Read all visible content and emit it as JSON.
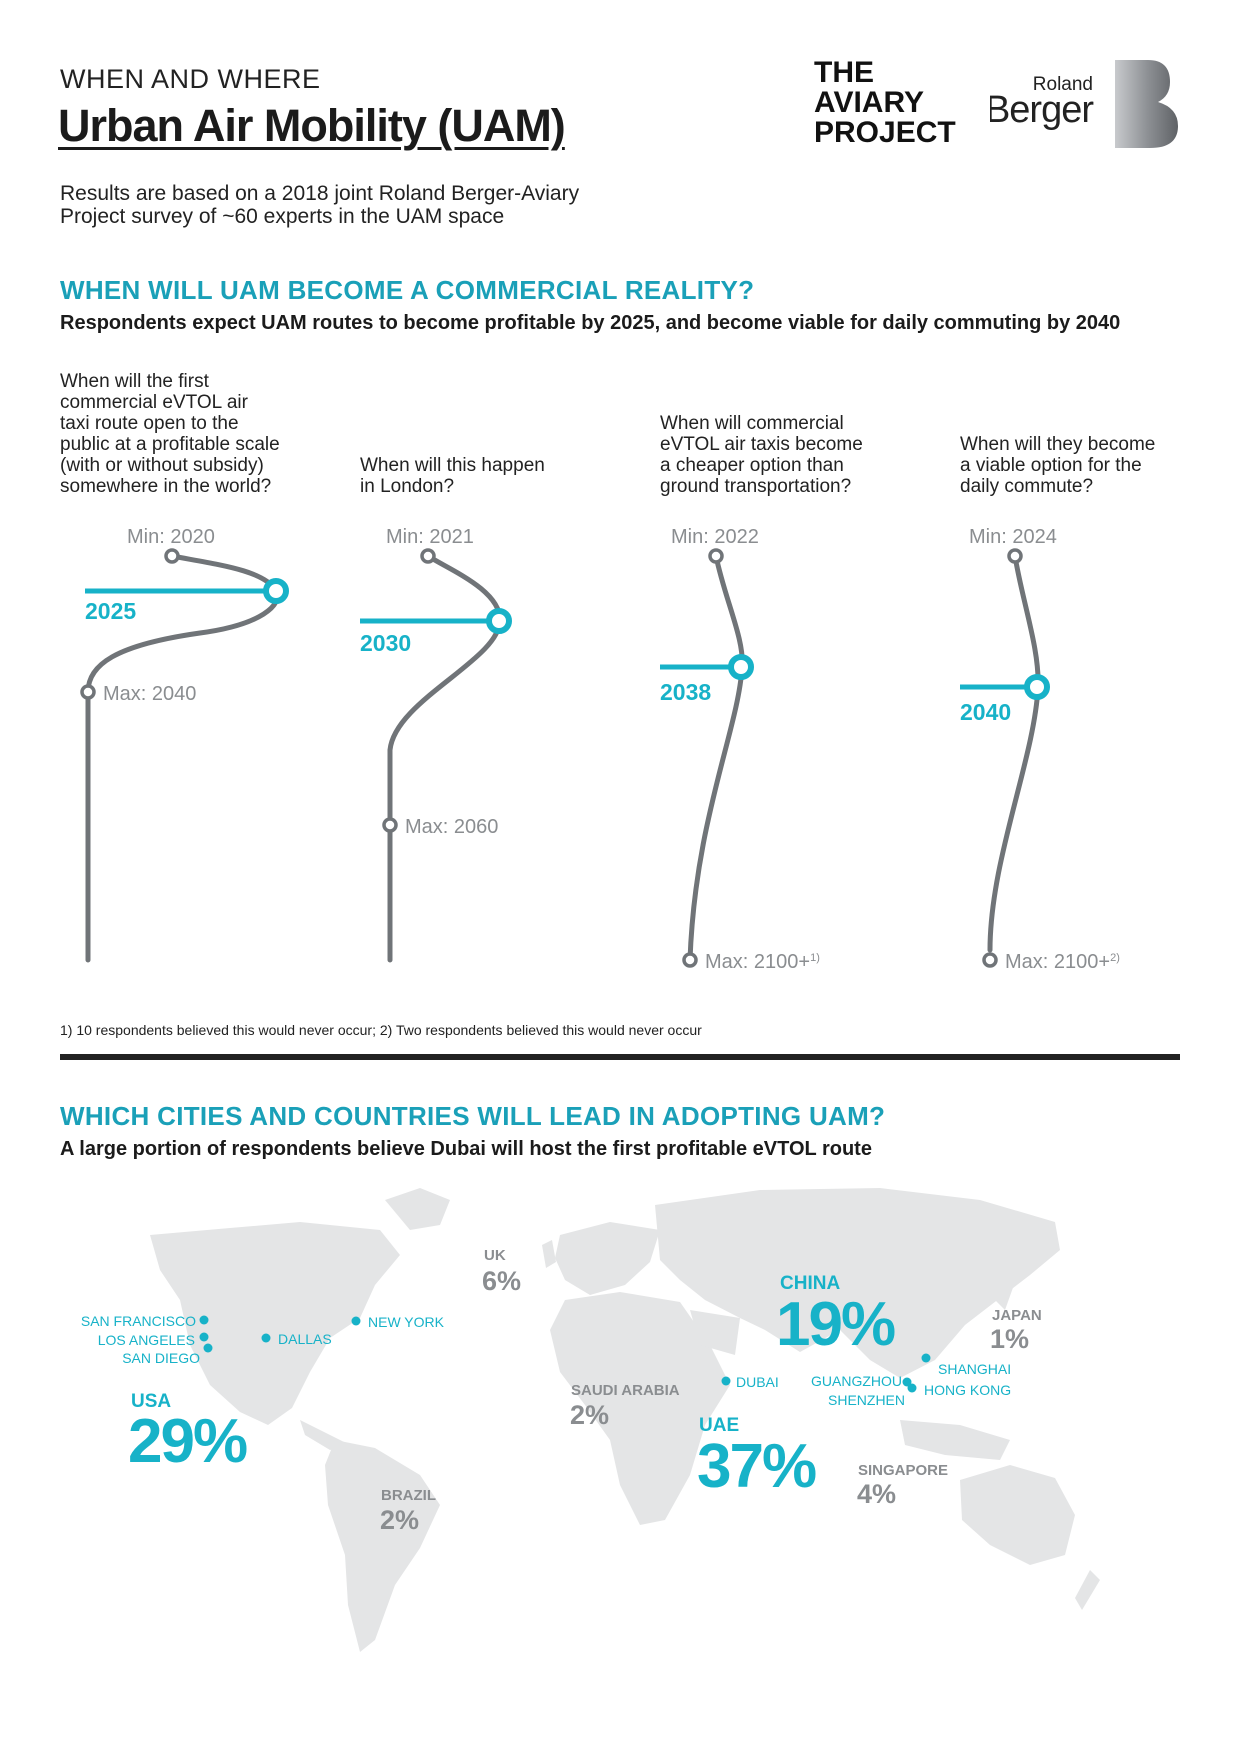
{
  "header": {
    "kicker": "WHEN AND WHERE",
    "title": "Urban Air Mobility (UAM)",
    "intro": "Results are based on a 2018 joint Roland Berger-Aviary Project survey of ~60 experts in the UAM space",
    "logo_aviary": [
      "THE",
      "AVIARY",
      "PROJECT"
    ],
    "logo_rb_line1": "Roland",
    "logo_rb_line2": "Berger"
  },
  "section1": {
    "title": "WHEN WILL UAM BECOME A COMMERCIAL REALITY?",
    "subtitle": "Respondents expect UAM routes to become profitable by 2025, and become viable for daily commuting by 2040"
  },
  "timelines": [
    {
      "question": [
        "When will the first",
        "commercial eVTOL air",
        "taxi route open to the",
        "public at a profitable scale",
        "(with or without subsidy)",
        "somewhere in the world?"
      ],
      "min": "Min: 2020",
      "median": "2025",
      "max": "Max: 2040",
      "max_note": ""
    },
    {
      "question": [
        "When will this happen",
        "in London?"
      ],
      "min": "Min: 2021",
      "median": "2030",
      "max": "Max: 2060",
      "max_note": ""
    },
    {
      "question": [
        "When will commercial",
        "eVTOL air taxis become",
        "a cheaper option than",
        "ground transportation?"
      ],
      "min": "Min: 2022",
      "median": "2038",
      "max": "Max: 2100+",
      "max_note": "1)"
    },
    {
      "question": [
        "When will they become",
        "a viable option for the",
        "daily commute?"
      ],
      "min": "Min: 2024",
      "median": "2040",
      "max": "Max: 2100+",
      "max_note": "2)"
    }
  ],
  "footnote": "1) 10 respondents believed this would never occur; 2) Two respondents believed this would never occur",
  "section2": {
    "title": "WHICH CITIES AND COUNTRIES WILL LEAD IN ADOPTING UAM?",
    "subtitle": "A large portion of respondents believe Dubai will host the first profitable eVTOL route"
  },
  "countries": [
    {
      "name": "USA",
      "value": "29%",
      "color": "#17b2c8"
    },
    {
      "name": "UK",
      "value": "6%",
      "color": "#8a8d90"
    },
    {
      "name": "CHINA",
      "value": "19%",
      "color": "#17b2c8"
    },
    {
      "name": "JAPAN",
      "value": "1%",
      "color": "#8a8d90"
    },
    {
      "name": "SAUDI ARABIA",
      "value": "2%",
      "color": "#8a8d90"
    },
    {
      "name": "UAE",
      "value": "37%",
      "color": "#17b2c8"
    },
    {
      "name": "SINGAPORE",
      "value": "4%",
      "color": "#8a8d90"
    },
    {
      "name": "BRAZIL",
      "value": "2%",
      "color": "#8a8d90"
    }
  ],
  "cities": [
    "SAN FRANCISCO",
    "LOS ANGELES",
    "SAN DIEGO",
    "DALLAS",
    "NEW YORK",
    "DUBAI",
    "GUANGZHOU",
    "SHENZHEN",
    "SHANGHAI",
    "HONG KONG"
  ],
  "colors": {
    "accent": "#17b2c8",
    "gray": "#8a8d90",
    "map": "#e4e5e6",
    "line": "#707478"
  }
}
